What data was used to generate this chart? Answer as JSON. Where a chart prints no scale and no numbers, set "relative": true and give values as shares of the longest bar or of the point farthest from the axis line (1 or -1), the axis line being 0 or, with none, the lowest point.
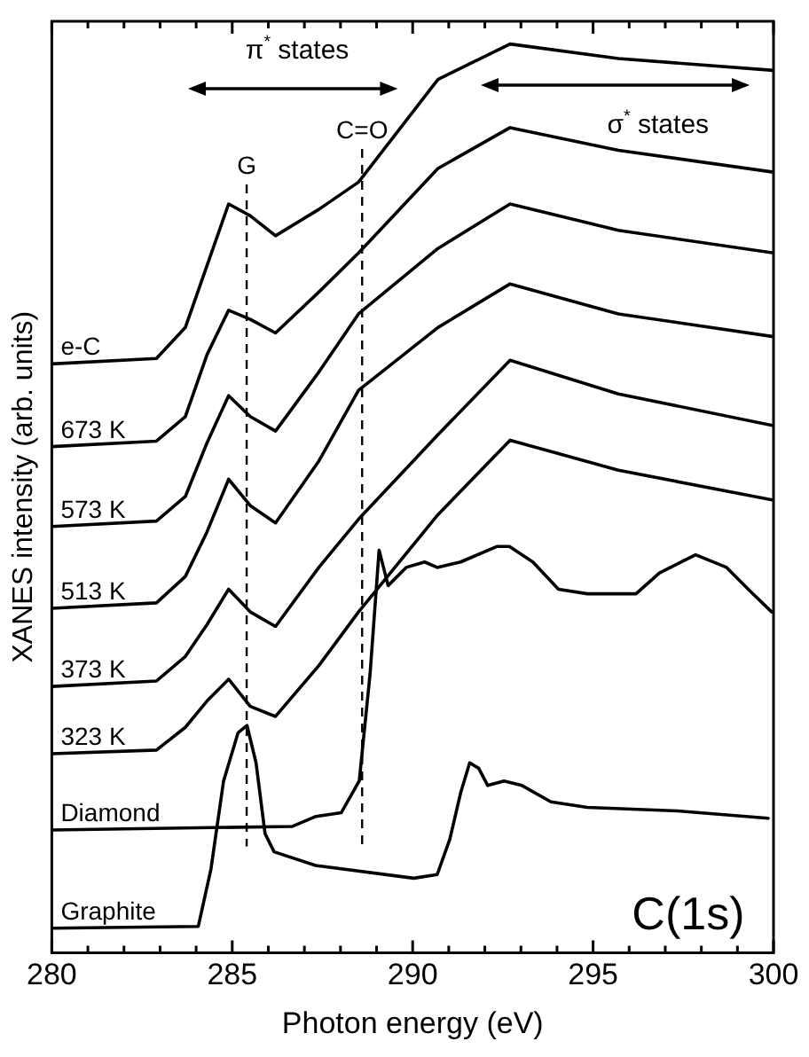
{
  "chart_data": {
    "type": "line",
    "xlabel": "Photon energy (eV)",
    "ylabel": "XANES intensity (arb. units)",
    "relative": true,
    "legend": false,
    "grid": false,
    "marker": "none",
    "tick_labels": "x",
    "xlim": [
      280,
      300
    ],
    "xticks": [
      280,
      {
        "value": 281,
        "label": null
      },
      {
        "value": 282,
        "label": null
      },
      {
        "value": 283,
        "label": null
      },
      {
        "value": 284,
        "label": null
      },
      285,
      {
        "value": 286,
        "label": null
      },
      {
        "value": 287,
        "label": null
      },
      {
        "value": 288,
        "label": null
      },
      {
        "value": 289,
        "label": null
      },
      290,
      {
        "value": 291,
        "label": null
      },
      {
        "value": 292,
        "label": null
      },
      {
        "value": 293,
        "label": null
      },
      {
        "value": 294,
        "label": null
      },
      295,
      {
        "value": 296,
        "label": null
      },
      {
        "value": 297,
        "label": null
      },
      {
        "value": 298,
        "label": null
      },
      {
        "value": 299,
        "label": null
      },
      300
    ],
    "x": [
      280,
      282.9,
      283.7,
      284.3,
      284.9,
      285.5,
      286.2,
      287.4,
      288.5,
      290.7,
      292.7,
      295.7,
      300
    ],
    "series": [
      {
        "name": "e-C",
        "color": "#000000",
        "values": [
          0.648,
          0.654,
          0.688,
          0.756,
          0.824,
          0.811,
          0.789,
          0.818,
          0.848,
          0.961,
          1.0,
          0.984,
          0.971
        ]
      },
      {
        "name": "673 K",
        "color": "#000000",
        "values": [
          0.557,
          0.563,
          0.59,
          0.658,
          0.707,
          0.697,
          0.682,
          0.727,
          0.77,
          0.863,
          0.908,
          0.883,
          0.859
        ]
      },
      {
        "name": "573 K",
        "color": "#000000",
        "values": [
          0.469,
          0.475,
          0.502,
          0.561,
          0.613,
          0.59,
          0.574,
          0.639,
          0.703,
          0.775,
          0.824,
          0.795,
          0.77
        ]
      },
      {
        "name": "513 K",
        "color": "#000000",
        "values": [
          0.379,
          0.385,
          0.414,
          0.463,
          0.521,
          0.492,
          0.473,
          0.541,
          0.619,
          0.688,
          0.736,
          0.703,
          0.678
        ]
      },
      {
        "name": "373 K",
        "color": "#000000",
        "values": [
          0.293,
          0.299,
          0.326,
          0.361,
          0.4,
          0.375,
          0.359,
          0.424,
          0.477,
          0.57,
          0.652,
          0.615,
          0.58
        ]
      },
      {
        "name": "323 K",
        "color": "#000000",
        "values": [
          0.219,
          0.223,
          0.248,
          0.277,
          0.301,
          0.271,
          0.26,
          0.316,
          0.375,
          0.482,
          0.564,
          0.531,
          0.498
        ]
      },
      {
        "name": "Diamond",
        "color": "#000000",
        "x": [
          280,
          286.67,
          287.32,
          288.02,
          288.52,
          288.82,
          289.07,
          289.32,
          289.82,
          290.33,
          290.68,
          291.33,
          292.33,
          292.68,
          293.33,
          294.04,
          294.84,
          296.19,
          296.84,
          297.84,
          298.7,
          299.35,
          299.95
        ],
        "values": [
          0.135,
          0.139,
          0.15,
          0.154,
          0.189,
          0.307,
          0.443,
          0.404,
          0.424,
          0.43,
          0.424,
          0.43,
          0.447,
          0.447,
          0.43,
          0.4,
          0.395,
          0.395,
          0.418,
          0.438,
          0.424,
          0.398,
          0.375
        ]
      },
      {
        "name": "Graphite",
        "color": "#000000",
        "x": [
          280,
          284.06,
          284.41,
          284.76,
          285.16,
          285.41,
          285.66,
          285.91,
          286.16,
          287.31,
          290.03,
          290.68,
          291.03,
          291.33,
          291.58,
          291.83,
          292.08,
          292.53,
          293.03,
          293.83,
          294.84,
          297.34,
          299.85
        ],
        "values": [
          0.027,
          0.029,
          0.092,
          0.189,
          0.242,
          0.25,
          0.209,
          0.131,
          0.111,
          0.096,
          0.082,
          0.086,
          0.125,
          0.176,
          0.209,
          0.203,
          0.184,
          0.189,
          0.184,
          0.166,
          0.16,
          0.156,
          0.148
        ]
      }
    ],
    "ref_lines": [
      {
        "axis": "x",
        "value": 285.4,
        "label": "G",
        "line_style": "dashed",
        "color": "#000000"
      },
      {
        "axis": "x",
        "value": 288.6,
        "label": "C=O",
        "line_style": "dashed",
        "color": "#000000"
      }
    ],
    "annotations": [
      "π$^{*}$ states",
      "σ$^{*}$ states",
      "C(1s)"
    ]
  }
}
